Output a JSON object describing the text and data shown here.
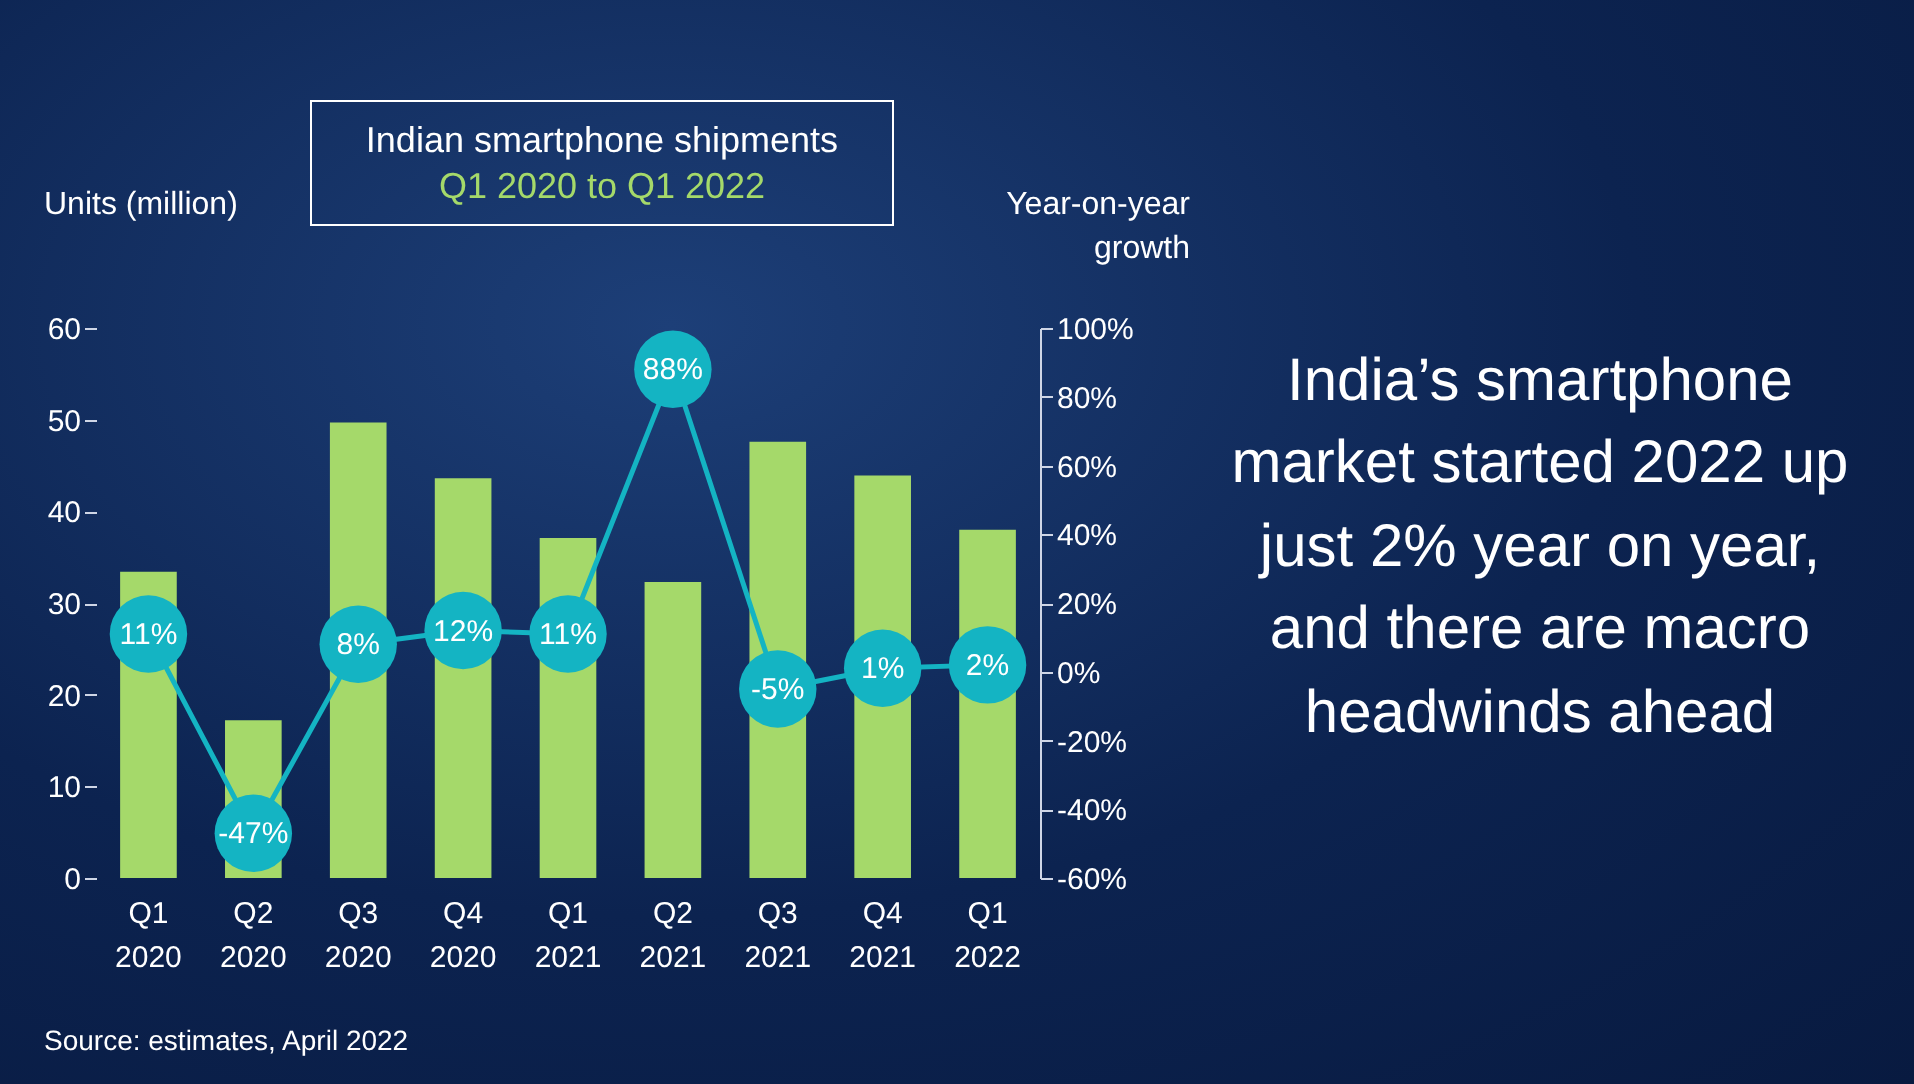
{
  "chart_data": {
    "type": "bar",
    "title": "Indian smartphone shipments",
    "subtitle": "Q1 2020 to Q1 2022",
    "ylabel": "Units (million)",
    "y2label": "Year-on-year growth",
    "categories": [
      "Q1 2020",
      "Q2 2020",
      "Q3 2020",
      "Q4 2020",
      "Q1 2021",
      "Q2 2021",
      "Q3 2021",
      "Q4 2021",
      "Q1 2022"
    ],
    "series": [
      {
        "color": "#a5d96a",
        "values": [
          33.4,
          17.2,
          49.7,
          43.6,
          37.1,
          32.3,
          47.6,
          43.9,
          38.0
        ]
      },
      {
        "type": "line",
        "axis": "y2",
        "color": "#14b4c3",
        "values": [
          11,
          -47,
          8,
          12,
          11,
          88,
          -5,
          1,
          2
        ],
        "value_labels": [
          "11%",
          "-47%",
          "8%",
          "12%",
          "11%",
          "88%",
          "-5%",
          "1%",
          "2%"
        ]
      }
    ],
    "marker": "circle",
    "ylim": [
      0,
      60
    ],
    "yticks": [
      0,
      10,
      20,
      30,
      40,
      50,
      60
    ],
    "y2lim": [
      -60,
      100
    ],
    "y2ticks": [
      {
        "value": -60,
        "label": "-60%"
      },
      {
        "value": -40,
        "label": "-40%"
      },
      {
        "value": -20,
        "label": "-20%"
      },
      {
        "value": 0,
        "label": "0%"
      },
      {
        "value": 20,
        "label": "20%"
      },
      {
        "value": 40,
        "label": "40%"
      },
      {
        "value": 60,
        "label": "60%"
      },
      {
        "value": 80,
        "label": "80%"
      },
      {
        "value": 100,
        "label": "100%"
      }
    ],
    "annotations": [
      "India’s smartphone market started 2022 up just 2% year on year, and there are macro headwinds ahead",
      "Source: estimates, April 2022"
    ]
  }
}
